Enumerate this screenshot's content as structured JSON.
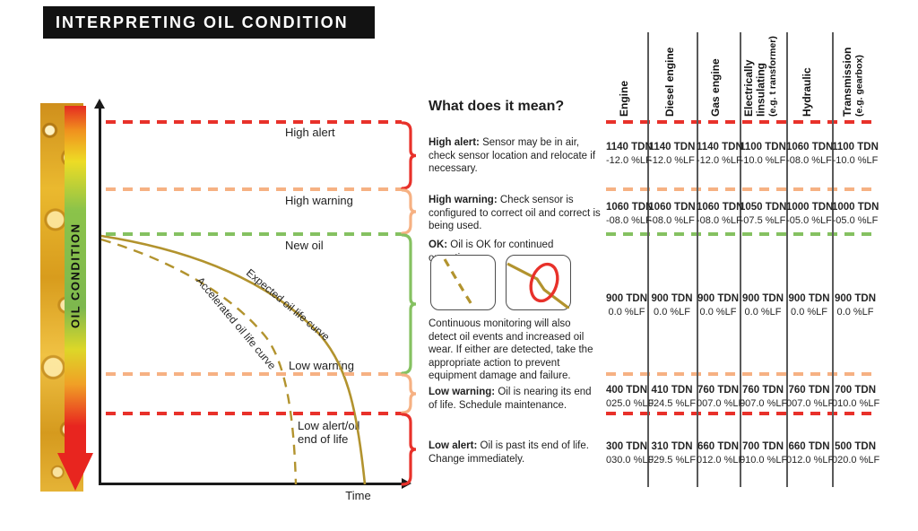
{
  "title": "INTERPRETING OIL CONDITION",
  "colors": {
    "alert_red": "#e8312a",
    "warning_orange": "#f6b183",
    "ok_green": "#85c161",
    "curve_olive": "#b2932e",
    "axis_black": "#1a1a1a",
    "table_line_gray": "#5a5a5a",
    "title_bg": "#121212",
    "title_fg": "#ffffff"
  },
  "sidebar": {
    "label": "OIL CONDITION",
    "gradient_top_to_bottom": [
      "#e52b20",
      "#f0901e",
      "#eddc25",
      "#7db84e",
      "#ddd728",
      "#f0a026",
      "#e8251f"
    ]
  },
  "chart": {
    "x_axis_label": "Time",
    "thresholds": [
      {
        "id": "high-alert",
        "label": "High alert",
        "color": "#e8312a"
      },
      {
        "id": "high-warning",
        "label": "High warning",
        "color": "#f6b183"
      },
      {
        "id": "new-oil",
        "label": "New oil",
        "color": "#85c161"
      },
      {
        "id": "low-warning",
        "label": "Low warning",
        "color": "#f6b183"
      },
      {
        "id": "low-alert",
        "label": "Low alert/oil\nend of life",
        "color": "#e8312a"
      }
    ],
    "curves": [
      {
        "label": "Expected oil life curve",
        "style": "solid",
        "color": "#b2932e"
      },
      {
        "label": "Accelerated oil life curve",
        "style": "dashed",
        "color": "#b2932e"
      }
    ]
  },
  "explanations": {
    "heading": "What does it mean?",
    "items": [
      {
        "term": "High alert:",
        "text": "Sensor may be in air, check sensor location and relocate if necessary."
      },
      {
        "term": "High warning:",
        "text": "Check sensor is configured to correct oil and correct is being used."
      },
      {
        "term": "OK:",
        "text": "Oil is OK for continued operation."
      },
      {
        "term": "",
        "text": "Continuous monitoring will also detect oil events and increased oil wear. If either are detected, take the appropriate action to prevent equipment damage and failure."
      },
      {
        "term": "Low warning:",
        "text": "Oil is nearing its end of life. Schedule maintenance."
      },
      {
        "term": "Low alert:",
        "text": "Oil is past its end of life. Change immediately."
      }
    ]
  },
  "table": {
    "columns": [
      {
        "lines": [
          "Engine"
        ]
      },
      {
        "lines": [
          "Diesel engine"
        ]
      },
      {
        "lines": [
          "Gas engine"
        ]
      },
      {
        "lines": [
          "Electrically",
          "Iinsulating",
          "(e.g. t ransformer)"
        ]
      },
      {
        "lines": [
          "Hydraulic"
        ]
      },
      {
        "lines": [
          "Transmission",
          "(e.g. gearbox)"
        ]
      }
    ],
    "rows": [
      {
        "zone": "high-alert",
        "cells": [
          [
            "1140 TDN",
            "-12.0 %LF"
          ],
          [
            "1140 TDN",
            "-12.0 %LF"
          ],
          [
            "1140 TDN",
            "-12.0 %LF"
          ],
          [
            "1100 TDN",
            "-10.0 %LF"
          ],
          [
            "1060 TDN",
            "-08.0 %LF"
          ],
          [
            "1100 TDN",
            "-10.0 %LF"
          ]
        ]
      },
      {
        "zone": "high-warning",
        "cells": [
          [
            "1060 TDN",
            "-08.0 %LF"
          ],
          [
            "1060 TDN",
            "-08.0 %LF"
          ],
          [
            "1060 TDN",
            "-08.0 %LF"
          ],
          [
            "1050 TDN",
            "-07.5 %LF"
          ],
          [
            "1000 TDN",
            "-05.0 %LF"
          ],
          [
            "1000 TDN",
            "-05.0 %LF"
          ]
        ]
      },
      {
        "zone": "ok",
        "cells": [
          [
            "900 TDN",
            "0.0 %LF"
          ],
          [
            "900 TDN",
            "0.0 %LF"
          ],
          [
            "900 TDN",
            "0.0 %LF"
          ],
          [
            "900 TDN",
            "0.0 %LF"
          ],
          [
            "900 TDN",
            "0.0 %LF"
          ],
          [
            "900 TDN",
            "0.0 %LF"
          ]
        ]
      },
      {
        "zone": "low-warning",
        "cells": [
          [
            "400 TDN",
            "025.0 %LF"
          ],
          [
            "410 TDN",
            "024.5 %LF"
          ],
          [
            "760 TDN",
            "007.0 %LF"
          ],
          [
            "760 TDN",
            "007.0 %LF"
          ],
          [
            "760 TDN",
            "007.0 %LF"
          ],
          [
            "700 TDN",
            "010.0 %LF"
          ]
        ]
      },
      {
        "zone": "low-alert",
        "cells": [
          [
            "300 TDN",
            "030.0 %LF"
          ],
          [
            "310 TDN",
            "029.5 %LF"
          ],
          [
            "660 TDN",
            "012.0 %LF"
          ],
          [
            "700 TDN",
            "010.0 %LF"
          ],
          [
            "660 TDN",
            "012.0 %LF"
          ],
          [
            "500 TDN",
            "020.0 %LF"
          ]
        ]
      }
    ]
  }
}
